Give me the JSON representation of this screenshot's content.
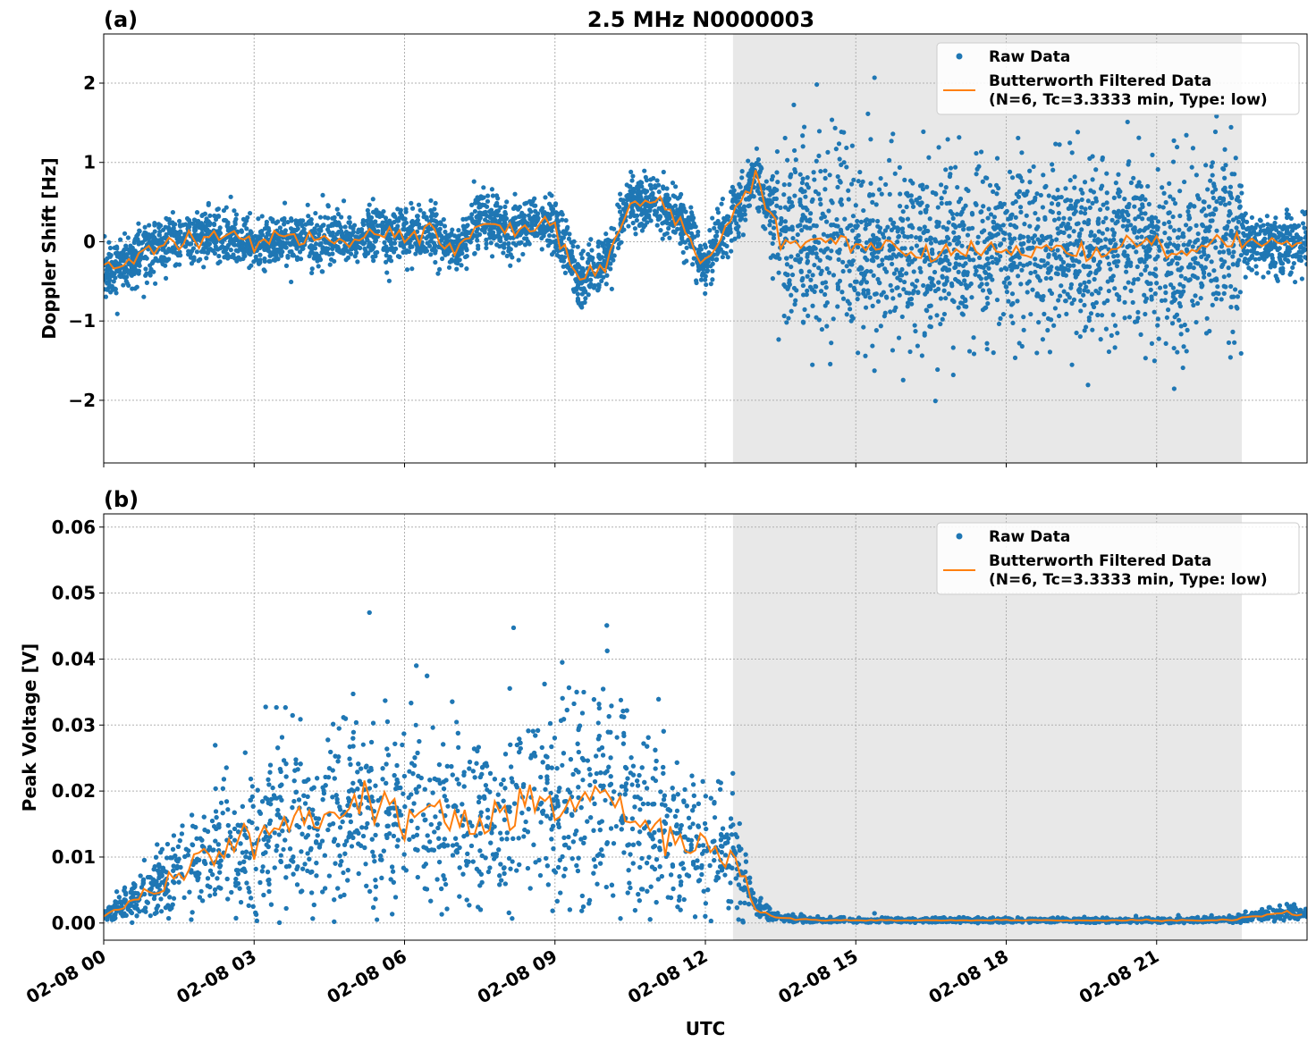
{
  "chart_data": [
    {
      "type": "scatter",
      "panel_label": "(a)",
      "title": "2.5 MHz N0000003",
      "xlabel": "",
      "ylabel": "Doppler Shift [Hz]",
      "xlim_hours": [
        0,
        24
      ],
      "ylim": [
        -2.79,
        2.62
      ],
      "yticks": [
        2,
        1,
        0,
        -1,
        -2
      ],
      "ytick_labels": [
        "2",
        "1",
        "0",
        "−1",
        "−2"
      ],
      "grid": true,
      "legend": "top-right",
      "legend_entries": [
        "Raw Data",
        "Butterworth Filtered Data\n(N=6, Tc=3.3333 min, Type: low)"
      ],
      "legend_lines": [
        "Raw Data",
        "Butterworth Filtered Data",
        "(N=6, Tc=3.3333 min, Type: low)"
      ],
      "shaded_region_hours": [
        12.55,
        22.7
      ],
      "series": [
        {
          "name": "Butterworth Filtered Data",
          "color": "#ff7f0e",
          "x_step_hours": 0.5,
          "values": [
            -0.4,
            -0.25,
            -0.05,
            0,
            0.1,
            0.05,
            -0.05,
            0,
            0.05,
            0.05,
            0.05,
            0.1,
            0.05,
            0.15,
            -0.15,
            0.3,
            0.15,
            0.2,
            0.2,
            -0.5,
            -0.3,
            0.5,
            0.5,
            0.3,
            -0.3,
            0.3,
            0.8,
            0,
            0,
            0.05,
            -0.05,
            0,
            -0.1,
            -0.2,
            -0.1,
            -0.1,
            -0.15,
            -0.1,
            -0.05,
            -0.15,
            -0.1,
            0,
            -0.05,
            -0.2,
            0,
            0,
            0,
            -0.05
          ]
        },
        {
          "name": "Raw Data",
          "color": "#1f77b4",
          "spread_note": "scatter around filtered",
          "spread_by_period": [
            {
              "from": 0,
              "to": 13.3,
              "std": 0.17
            },
            {
              "from": 13.3,
              "to": 22.7,
              "std": 0.55
            },
            {
              "from": 22.7,
              "to": 24,
              "std": 0.2
            }
          ]
        }
      ]
    },
    {
      "type": "scatter",
      "panel_label": "(b)",
      "xlabel": "UTC",
      "ylabel": "Peak Voltage [V]",
      "xlim_hours": [
        0,
        24
      ],
      "ylim": [
        -0.0026,
        0.062
      ],
      "yticks": [
        0.06,
        0.05,
        0.04,
        0.03,
        0.02,
        0.01,
        0.0
      ],
      "ytick_labels": [
        "0.06",
        "0.05",
        "0.04",
        "0.03",
        "0.02",
        "0.01",
        "0.00"
      ],
      "xticks_hours": [
        0,
        3,
        6,
        9,
        12,
        15,
        18,
        21
      ],
      "xtick_labels": [
        "02-08 00",
        "02-08 03",
        "02-08 06",
        "02-08 09",
        "02-08 12",
        "02-08 15",
        "02-08 18",
        "02-08 21"
      ],
      "grid": true,
      "legend": "top-right",
      "legend_lines": [
        "Raw Data",
        "Butterworth Filtered Data",
        "(N=6, Tc=3.3333 min, Type: low)"
      ],
      "shaded_region_hours": [
        12.55,
        22.7
      ],
      "series": [
        {
          "name": "Butterworth Filtered Data",
          "color": "#ff7f0e",
          "x_step_hours": 0.5,
          "values": [
            0.001,
            0.003,
            0.005,
            0.008,
            0.01,
            0.012,
            0.013,
            0.016,
            0.015,
            0.016,
            0.018,
            0.017,
            0.016,
            0.016,
            0.015,
            0.016,
            0.016,
            0.017,
            0.017,
            0.019,
            0.02,
            0.017,
            0.014,
            0.012,
            0.011,
            0.011,
            0.002,
            0.0008,
            0.0005,
            0.0004,
            0.0004,
            0.0004,
            0.0004,
            0.0004,
            0.0004,
            0.0004,
            0.0004,
            0.0004,
            0.0004,
            0.0004,
            0.0004,
            0.0004,
            0.0004,
            0.0004,
            0.0004,
            0.0005,
            0.001,
            0.0015
          ]
        },
        {
          "name": "Raw Data",
          "color": "#1f77b4",
          "spread_note": "relative spread ~40% of filtered value"
        }
      ]
    }
  ]
}
